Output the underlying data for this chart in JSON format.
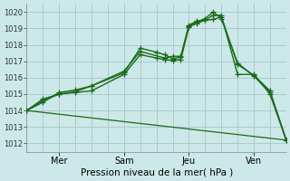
{
  "background_color": "#cde8e8",
  "grid_color": "#aacccc",
  "line_color": "#1a6b1a",
  "xlabel": "Pression niveau de la mer( hPa )",
  "ylim": [
    1011.5,
    1020.5
  ],
  "yticks": [
    1012,
    1013,
    1014,
    1015,
    1016,
    1017,
    1018,
    1019,
    1020
  ],
  "xlim": [
    0,
    96
  ],
  "xtick_positions": [
    12,
    36,
    60,
    84
  ],
  "xtick_labels": [
    "Mer",
    "Sam",
    "Jeu",
    "Ven"
  ],
  "series": [
    {
      "x": [
        0,
        6,
        12,
        18,
        24,
        36,
        42,
        48,
        51,
        54,
        57,
        60,
        63,
        66,
        69,
        72,
        78,
        84,
        90,
        96
      ],
      "y": [
        1014.0,
        1014.6,
        1015.0,
        1015.1,
        1015.2,
        1016.2,
        1017.4,
        1017.2,
        1017.1,
        1017.05,
        1017.1,
        1019.1,
        1019.3,
        1019.5,
        1019.8,
        1019.8,
        1016.2,
        1016.2,
        1015.0,
        1012.2
      ],
      "marker": "+",
      "lw": 1.0,
      "ms": 4
    },
    {
      "x": [
        0,
        6,
        12,
        18,
        24,
        36,
        42,
        48,
        51,
        54,
        57,
        60,
        63,
        66,
        69,
        72,
        78,
        84,
        90,
        96
      ],
      "y": [
        1014.0,
        1014.7,
        1015.0,
        1015.15,
        1015.5,
        1016.3,
        1017.8,
        1017.55,
        1017.4,
        1017.15,
        1017.25,
        1019.15,
        1019.4,
        1019.6,
        1020.0,
        1019.6,
        1016.9,
        1016.1,
        1015.1,
        1012.2
      ],
      "marker": "+",
      "lw": 1.0,
      "ms": 4
    },
    {
      "x": [
        0,
        6,
        12,
        18,
        24,
        36,
        42,
        51,
        54,
        57,
        60,
        63,
        66,
        69,
        72,
        78,
        84,
        90,
        96
      ],
      "y": [
        1014.0,
        1014.5,
        1015.1,
        1015.25,
        1015.5,
        1016.4,
        1017.6,
        1017.2,
        1017.3,
        1017.3,
        1019.2,
        1019.45,
        1019.5,
        1019.55,
        1019.7,
        1016.8,
        1016.15,
        1015.2,
        1012.2
      ],
      "marker": "+",
      "lw": 1.0,
      "ms": 4
    },
    {
      "x": [
        0,
        96
      ],
      "y": [
        1014.0,
        1012.2
      ],
      "marker": null,
      "lw": 0.9,
      "ms": 0
    }
  ]
}
